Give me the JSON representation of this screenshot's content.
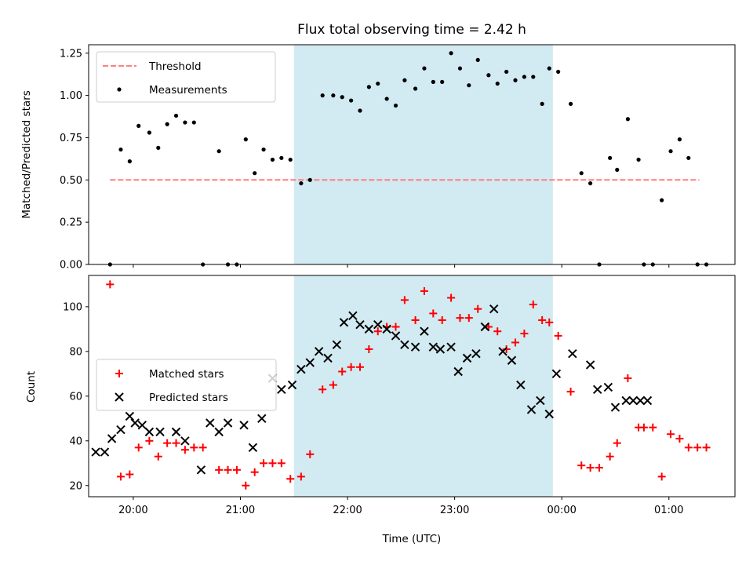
{
  "chart_data": [
    {
      "type": "scatter",
      "title": "Flux total observing time = 2.42 h",
      "xlabel": "",
      "ylabel": "Matched/Predicted stars",
      "ylim": [
        0,
        1.3
      ],
      "yticks": [
        "0.00",
        "0.25",
        "0.50",
        "0.75",
        "1.00",
        "1.25"
      ],
      "xlim": [
        "19:35",
        "01:37"
      ],
      "xticks": [
        "20:00",
        "21:00",
        "22:00",
        "23:00",
        "00:00",
        "01:00"
      ],
      "xtick_labels_shown": false,
      "shaded_region": {
        "x_start": "21:30",
        "x_end": "23:55",
        "color": "#add8e6"
      },
      "threshold": {
        "name": "Threshold",
        "value": 0.5,
        "x_start": "19:47",
        "x_end": "01:17",
        "color": "#ff7f7f",
        "style": "dashed"
      },
      "legend": {
        "placement": "upper-left",
        "entries": [
          "Threshold",
          "Measurements"
        ]
      },
      "series": [
        {
          "name": "Measurements",
          "marker": "dot",
          "color": "#000000",
          "x": [
            "19:47",
            "19:53",
            "19:58",
            "20:03",
            "20:09",
            "20:14",
            "20:19",
            "20:24",
            "20:29",
            "20:34",
            "20:39",
            "20:48",
            "20:53",
            "20:58",
            "21:03",
            "21:08",
            "21:13",
            "21:18",
            "21:23",
            "21:28",
            "21:34",
            "21:39",
            "21:46",
            "21:52",
            "21:57",
            "22:02",
            "22:07",
            "22:12",
            "22:17",
            "22:22",
            "22:27",
            "22:32",
            "22:38",
            "22:43",
            "22:48",
            "22:53",
            "22:58",
            "23:03",
            "23:08",
            "23:13",
            "23:19",
            "23:24",
            "23:29",
            "23:34",
            "23:39",
            "23:44",
            "23:49",
            "23:53",
            "23:58",
            "00:05",
            "00:11",
            "00:16",
            "00:21",
            "00:27",
            "00:31",
            "00:37",
            "00:43",
            "00:46",
            "00:51",
            "00:56",
            "01:01",
            "01:06",
            "01:11",
            "01:16",
            "01:21"
          ],
          "y": [
            0,
            0.68,
            0.61,
            0.82,
            0.78,
            0.69,
            0.83,
            0.88,
            0.84,
            0.84,
            0,
            0.67,
            0,
            0,
            0.74,
            0.54,
            0.68,
            0.62,
            0.63,
            0.62,
            0.48,
            0.5,
            1.0,
            1.0,
            0.99,
            0.97,
            0.91,
            1.05,
            1.07,
            0.98,
            0.94,
            1.09,
            1.04,
            1.16,
            1.08,
            1.08,
            1.25,
            1.16,
            1.06,
            1.21,
            1.12,
            1.07,
            1.14,
            1.09,
            1.11,
            1.11,
            0.95,
            1.16,
            1.14,
            0.95,
            0.54,
            0.48,
            0,
            0.63,
            0.56,
            0.86,
            0.62,
            0,
            0,
            0.38,
            0.67,
            0.74,
            0.63,
            0,
            0
          ]
        }
      ]
    },
    {
      "type": "scatter",
      "title": "",
      "xlabel": "Time (UTC)",
      "ylabel": "Count",
      "ylim": [
        15,
        114
      ],
      "yticks": [
        "20",
        "40",
        "60",
        "80",
        "100"
      ],
      "xlim": [
        "19:35",
        "01:37"
      ],
      "xticks": [
        "20:00",
        "21:00",
        "22:00",
        "23:00",
        "00:00",
        "01:00"
      ],
      "shaded_region": {
        "x_start": "21:30",
        "x_end": "23:55",
        "color": "#add8e6"
      },
      "legend": {
        "placement": "center-left",
        "entries": [
          "Matched stars",
          "Predicted stars"
        ]
      },
      "series": [
        {
          "name": "Matched stars",
          "marker": "plus",
          "color": "#ff0000",
          "x": [
            "19:47",
            "19:53",
            "19:58",
            "20:03",
            "20:09",
            "20:14",
            "20:19",
            "20:24",
            "20:29",
            "20:34",
            "20:39",
            "20:48",
            "20:53",
            "20:58",
            "21:03",
            "21:08",
            "21:13",
            "21:18",
            "21:23",
            "21:28",
            "21:34",
            "21:39",
            "21:46",
            "21:52",
            "21:57",
            "22:02",
            "22:07",
            "22:12",
            "22:17",
            "22:22",
            "22:27",
            "22:32",
            "22:38",
            "22:43",
            "22:48",
            "22:53",
            "22:58",
            "23:03",
            "23:08",
            "23:13",
            "23:19",
            "23:24",
            "23:29",
            "23:34",
            "23:39",
            "23:44",
            "23:49",
            "23:53",
            "23:58",
            "00:05",
            "00:11",
            "00:16",
            "00:21",
            "00:27",
            "00:31",
            "00:37",
            "00:43",
            "00:46",
            "00:51",
            "00:56",
            "01:01",
            "01:06",
            "01:11",
            "01:16",
            "01:21"
          ],
          "y": [
            110,
            24,
            25,
            37,
            40,
            33,
            39,
            39,
            36,
            37,
            37,
            27,
            27,
            27,
            20,
            26,
            30,
            30,
            30,
            23,
            24,
            34,
            63,
            65,
            71,
            73,
            73,
            81,
            89,
            91,
            91,
            103,
            94,
            107,
            97,
            94,
            104,
            95,
            95,
            99,
            91,
            89,
            81,
            84,
            88,
            101,
            94,
            93,
            87,
            62,
            29,
            28,
            28,
            33,
            39,
            68,
            46,
            46,
            46,
            24,
            43,
            41,
            37,
            37,
            37
          ]
        },
        {
          "name": "Predicted stars",
          "marker": "x",
          "color": "#000000",
          "x": [
            "19:39",
            "19:44",
            "19:48",
            "19:53",
            "19:58",
            "20:01",
            "20:05",
            "20:09",
            "20:15",
            "20:24",
            "20:29",
            "20:38",
            "20:43",
            "20:48",
            "20:53",
            "21:02",
            "21:07",
            "21:12",
            "21:18",
            "21:23",
            "21:29",
            "21:34",
            "21:39",
            "21:44",
            "21:49",
            "21:54",
            "21:58",
            "22:03",
            "22:07",
            "22:12",
            "22:17",
            "22:22",
            "22:27",
            "22:32",
            "22:38",
            "22:43",
            "22:48",
            "22:52",
            "22:58",
            "23:02",
            "23:07",
            "23:12",
            "23:17",
            "23:22",
            "23:27",
            "23:32",
            "23:37",
            "23:43",
            "23:48",
            "23:53",
            "23:57",
            "00:06",
            "00:16",
            "00:20",
            "00:26",
            "00:30",
            "00:36",
            "00:40",
            "00:44",
            "00:48"
          ],
          "y": [
            35,
            35,
            41,
            45,
            51,
            48,
            47,
            44,
            44,
            44,
            40,
            27,
            48,
            44,
            48,
            47,
            37,
            50,
            68,
            63,
            65,
            72,
            75,
            80,
            77,
            83,
            93,
            96,
            92,
            90,
            92,
            90,
            87,
            83,
            82,
            89,
            82,
            81,
            82,
            71,
            77,
            79,
            91,
            99,
            80,
            76,
            65,
            54,
            58,
            52,
            70,
            79,
            74,
            63,
            64,
            55,
            58,
            58,
            58,
            58
          ]
        }
      ]
    }
  ]
}
